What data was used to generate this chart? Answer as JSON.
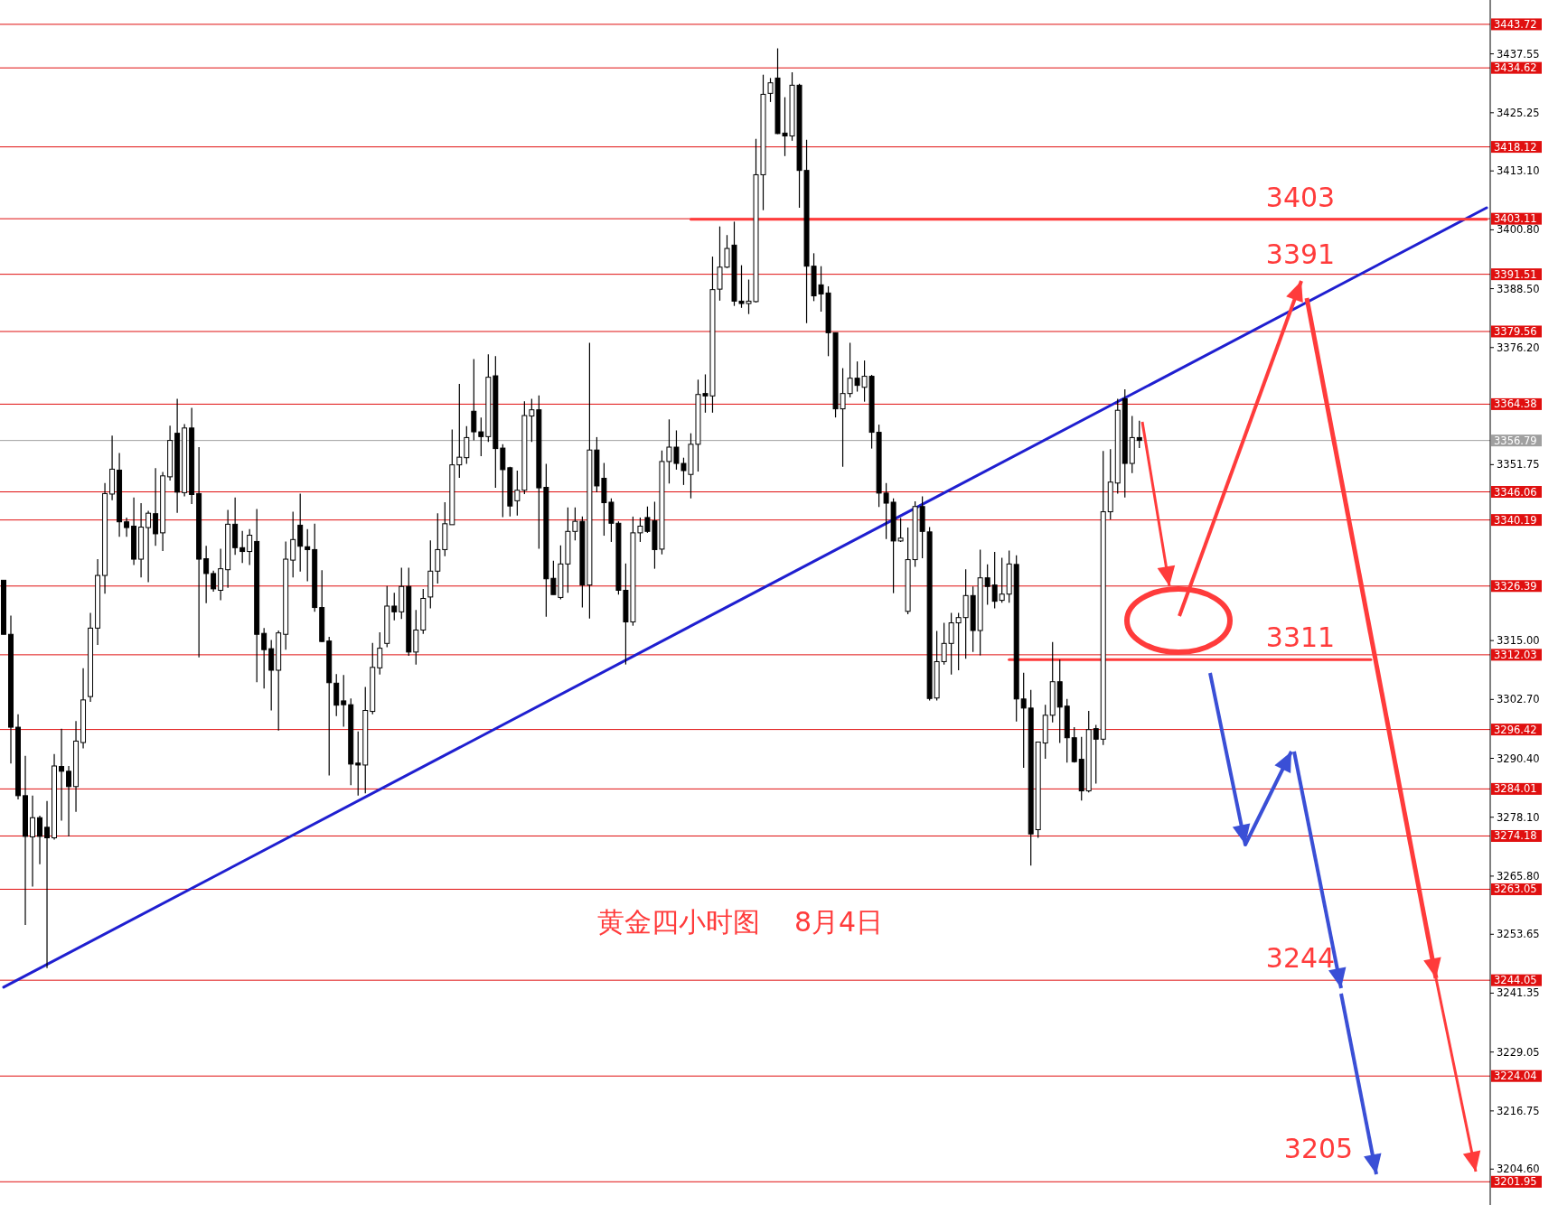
{
  "chart_data": {
    "type": "candlestick",
    "title": "黄金四小时图    8月4日",
    "ylim": [
      3197.1,
      3448.8
    ],
    "tick_labels": "y",
    "yticks": [
      {
        "value": 3437.55,
        "label": "3437.55"
      },
      {
        "value": 3425.25,
        "label": "3425.25"
      },
      {
        "value": 3413.1,
        "label": "3413.10"
      },
      {
        "value": 3400.8,
        "label": "3400.80"
      },
      {
        "value": 3388.5,
        "label": "3388.50"
      },
      {
        "value": 3376.2,
        "label": "3376.20"
      },
      {
        "value": 3351.75,
        "label": "3351.75"
      },
      {
        "value": 3315.0,
        "label": "3315.00"
      },
      {
        "value": 3302.7,
        "label": "3302.70"
      },
      {
        "value": 3290.4,
        "label": "3290.40"
      },
      {
        "value": 3278.1,
        "label": "3278.10"
      },
      {
        "value": 3265.8,
        "label": "3265.80"
      },
      {
        "value": 3253.65,
        "label": "3253.65"
      },
      {
        "value": 3241.35,
        "label": "3241.35"
      },
      {
        "value": 3229.05,
        "label": "3229.05"
      },
      {
        "value": 3216.75,
        "label": "3216.75"
      },
      {
        "value": 3204.6,
        "label": "3204.60"
      }
    ],
    "categories": [
      null,
      null,
      null,
      null,
      null,
      null,
      null,
      null,
      null,
      null,
      null,
      null,
      null,
      null,
      null,
      null,
      null,
      null,
      null,
      null,
      null,
      null,
      null,
      null,
      null,
      null,
      null,
      null,
      null,
      null,
      null,
      null,
      null,
      null,
      null,
      null,
      null,
      null,
      null,
      null,
      null,
      null,
      null,
      null,
      null,
      null,
      null,
      null,
      null,
      null,
      null,
      null,
      null,
      null,
      null,
      null,
      null,
      null,
      null,
      null,
      null,
      null,
      null,
      null,
      null,
      null,
      null,
      null,
      null,
      null,
      null,
      null,
      null,
      null,
      null,
      null,
      null,
      null,
      null,
      null,
      null,
      null,
      null,
      null,
      null,
      null,
      null,
      null,
      null,
      null,
      null,
      null,
      null,
      null,
      null,
      null,
      null,
      null,
      null,
      null,
      null,
      null,
      null,
      null,
      null,
      null,
      null,
      null,
      null,
      null,
      null,
      null,
      null,
      null,
      null,
      null,
      null,
      null,
      null,
      null,
      null,
      null,
      null,
      null,
      null,
      null,
      null,
      null,
      null,
      null,
      null,
      null,
      null,
      null,
      null,
      null,
      null,
      null,
      null,
      null,
      null,
      null,
      null,
      null,
      null,
      null,
      null,
      null,
      null,
      null,
      null,
      null,
      null,
      null,
      null,
      null,
      null,
      null,
      null,
      null,
      null,
      null,
      null,
      null,
      null,
      null,
      null,
      null,
      null,
      null,
      null,
      null,
      null,
      null,
      null,
      null,
      null,
      null,
      null,
      null,
      null,
      null,
      null,
      null,
      null,
      null,
      null,
      null,
      null,
      null,
      null,
      null,
      null,
      null,
      null,
      null,
      null,
      null,
      null,
      null,
      null,
      null,
      null,
      null,
      null,
      null
    ],
    "ohlc": [
      [
        3327.6,
        3327.6,
        3316.3,
        3316.3
      ],
      [
        3316.3,
        3320.2,
        3289.3,
        3296.9
      ],
      [
        3296.9,
        3299.6,
        3281.8,
        3282.6
      ],
      [
        3282.6,
        3290.9,
        3255.6,
        3274.1
      ],
      [
        3274.0,
        3282.6,
        3263.6,
        3278.0
      ],
      [
        3278.0,
        3278.4,
        3268.3,
        3274.1
      ],
      [
        3276.0,
        3281.5,
        3246.6,
        3273.8
      ],
      [
        3273.8,
        3291.3,
        3273.4,
        3288.8
      ],
      [
        3288.7,
        3296.6,
        3277.4,
        3287.7
      ],
      [
        3287.7,
        3288.8,
        3274.1,
        3284.5
      ],
      [
        3284.5,
        3298.2,
        3279.2,
        3294.0
      ],
      [
        3293.7,
        3309.2,
        3292.5,
        3302.6
      ],
      [
        3303.3,
        3320.8,
        3302.2,
        3317.6
      ],
      [
        3317.6,
        3332.0,
        3314.1,
        3328.6
      ],
      [
        3328.6,
        3347.9,
        3324.8,
        3345.7
      ],
      [
        3345.6,
        3357.8,
        3344.3,
        3350.8
      ],
      [
        3350.6,
        3354.2,
        3336.7,
        3339.8
      ],
      [
        3339.8,
        3340.7,
        3336.7,
        3338.6
      ],
      [
        3338.9,
        3344.9,
        3330.8,
        3332.0
      ],
      [
        3332.0,
        3343.7,
        3328.2,
        3338.7
      ],
      [
        3338.6,
        3342.1,
        3327.2,
        3341.6
      ],
      [
        3341.5,
        3351.0,
        3334.8,
        3337.3
      ],
      [
        3337.5,
        3350.2,
        3333.7,
        3349.4
      ],
      [
        3349.2,
        3359.9,
        3348.4,
        3356.8
      ],
      [
        3358.3,
        3365.5,
        3341.7,
        3346.0
      ],
      [
        3345.9,
        3360.2,
        3345.1,
        3359.4
      ],
      [
        3359.4,
        3363.6,
        3343.5,
        3345.5
      ],
      [
        3345.7,
        3355.4,
        3311.5,
        3332.0
      ],
      [
        3332.1,
        3334.8,
        3322.8,
        3329.0
      ],
      [
        3329.0,
        3329.6,
        3325.2,
        3325.8
      ],
      [
        3325.5,
        3334.2,
        3323.4,
        3330.0
      ],
      [
        3329.8,
        3342.3,
        3326.0,
        3339.3
      ],
      [
        3339.3,
        3344.9,
        3332.9,
        3334.4
      ],
      [
        3334.4,
        3337.9,
        3331.2,
        3333.6
      ],
      [
        3333.6,
        3338.3,
        3330.8,
        3337.0
      ],
      [
        3335.7,
        3342.5,
        3306.3,
        3316.3
      ],
      [
        3316.5,
        3317.6,
        3305.0,
        3313.1
      ],
      [
        3313.3,
        3315.1,
        3300.4,
        3308.8
      ],
      [
        3308.8,
        3317.1,
        3296.2,
        3316.6
      ],
      [
        3316.3,
        3335.7,
        3313.1,
        3332.0
      ],
      [
        3331.8,
        3341.9,
        3328.2,
        3336.1
      ],
      [
        3339.1,
        3345.7,
        3329.4,
        3334.7
      ],
      [
        3334.6,
        3338.3,
        3327.4,
        3334.0
      ],
      [
        3334.0,
        3339.4,
        3321.0,
        3321.9
      ],
      [
        3321.9,
        3329.7,
        3314.7,
        3314.8
      ],
      [
        3314.9,
        3315.8,
        3286.8,
        3306.2
      ],
      [
        3306.1,
        3308.0,
        3299.2,
        3301.5
      ],
      [
        3302.4,
        3307.8,
        3297.0,
        3301.6
      ],
      [
        3301.6,
        3302.9,
        3284.8,
        3289.2
      ],
      [
        3289.4,
        3296.0,
        3282.6,
        3289.0
      ],
      [
        3289.0,
        3305.3,
        3283.1,
        3300.4
      ],
      [
        3300.2,
        3314.5,
        3299.6,
        3309.4
      ],
      [
        3309.3,
        3316.7,
        3307.9,
        3313.4
      ],
      [
        3314.4,
        3326.4,
        3313.6,
        3322.2
      ],
      [
        3322.2,
        3325.0,
        3319.2,
        3321.0
      ],
      [
        3321.0,
        3330.2,
        3319.5,
        3326.3
      ],
      [
        3326.3,
        3330.2,
        3311.8,
        3312.6
      ],
      [
        3312.6,
        3321.4,
        3310.0,
        3317.2
      ],
      [
        3317.2,
        3325.8,
        3316.4,
        3323.8
      ],
      [
        3324.1,
        3335.9,
        3321.7,
        3329.5
      ],
      [
        3329.5,
        3341.6,
        3326.9,
        3334.0
      ],
      [
        3334.0,
        3343.9,
        3332.6,
        3339.4
      ],
      [
        3339.2,
        3359.1,
        3339.2,
        3351.7
      ],
      [
        3351.7,
        3368.6,
        3349.0,
        3353.3
      ],
      [
        3353.2,
        3359.8,
        3351.9,
        3357.4
      ],
      [
        3362.9,
        3373.8,
        3356.8,
        3358.6
      ],
      [
        3358.6,
        3361.6,
        3353.5,
        3357.6
      ],
      [
        3357.6,
        3374.8,
        3356.5,
        3370.0
      ],
      [
        3370.3,
        3374.4,
        3346.9,
        3355.1
      ],
      [
        3355.2,
        3356.0,
        3340.8,
        3350.7
      ],
      [
        3351.1,
        3351.3,
        3340.9,
        3343.1
      ],
      [
        3344.2,
        3350.5,
        3341.1,
        3346.4
      ],
      [
        3346.4,
        3365.0,
        3345.6,
        3362.0
      ],
      [
        3361.9,
        3365.5,
        3356.5,
        3363.2
      ],
      [
        3363.2,
        3366.2,
        3334.2,
        3346.9
      ],
      [
        3347.0,
        3351.9,
        3320.0,
        3327.9
      ],
      [
        3328.0,
        3331.7,
        3324.6,
        3324.6
      ],
      [
        3324.0,
        3334.9,
        3323.6,
        3331.0
      ],
      [
        3331.0,
        3342.8,
        3325.0,
        3337.8
      ],
      [
        3337.8,
        3342.8,
        3335.9,
        3339.9
      ],
      [
        3339.9,
        3340.9,
        3321.9,
        3326.6
      ],
      [
        3326.6,
        3377.2,
        3319.6,
        3354.8
      ],
      [
        3354.8,
        3357.5,
        3346.0,
        3347.3
      ],
      [
        3348.9,
        3352.1,
        3336.9,
        3343.8
      ],
      [
        3343.9,
        3344.7,
        3335.6,
        3339.5
      ],
      [
        3339.5,
        3339.9,
        3324.6,
        3325.5
      ],
      [
        3325.5,
        3331.1,
        3310.0,
        3318.9
      ],
      [
        3318.9,
        3340.9,
        3318.1,
        3337.5
      ],
      [
        3337.5,
        3340.7,
        3335.6,
        3338.9
      ],
      [
        3340.7,
        3343.0,
        3337.5,
        3337.8
      ],
      [
        3340.0,
        3344.0,
        3330.0,
        3334.0
      ],
      [
        3334.1,
        3354.7,
        3333.0,
        3352.4
      ],
      [
        3352.4,
        3361.2,
        3347.8,
        3355.4
      ],
      [
        3355.4,
        3358.9,
        3350.7,
        3352.0
      ],
      [
        3352.0,
        3353.2,
        3347.5,
        3350.5
      ],
      [
        3349.7,
        3358.3,
        3344.7,
        3356.0
      ],
      [
        3356.0,
        3369.5,
        3350.3,
        3366.4
      ],
      [
        3366.6,
        3370.6,
        3362.6,
        3366.1
      ],
      [
        3366.1,
        3395.2,
        3362.6,
        3388.3
      ],
      [
        3388.4,
        3401.5,
        3386.0,
        3393.0
      ],
      [
        3393.0,
        3399.7,
        3392.8,
        3396.9
      ],
      [
        3397.6,
        3402.5,
        3384.9,
        3385.9
      ],
      [
        3385.9,
        3393.4,
        3384.5,
        3385.4
      ],
      [
        3385.4,
        3390.4,
        3383.2,
        3385.9
      ],
      [
        3385.8,
        3419.8,
        3385.6,
        3412.3
      ],
      [
        3412.3,
        3433.2,
        3404.9,
        3429.1
      ],
      [
        3429.3,
        3432.5,
        3427.5,
        3431.5
      ],
      [
        3432.5,
        3438.7,
        3420.8,
        3420.9
      ],
      [
        3421.0,
        3428.5,
        3416.2,
        3420.4
      ],
      [
        3420.4,
        3433.7,
        3419.4,
        3431.0
      ],
      [
        3431.0,
        3431.3,
        3405.4,
        3413.2
      ],
      [
        3413.2,
        3419.6,
        3381.3,
        3393.2
      ],
      [
        3393.2,
        3395.9,
        3385.9,
        3387.0
      ],
      [
        3389.3,
        3393.2,
        3383.7,
        3387.4
      ],
      [
        3387.6,
        3389.0,
        3374.4,
        3379.3
      ],
      [
        3379.3,
        3379.3,
        3361.6,
        3363.4
      ],
      [
        3363.4,
        3371.9,
        3351.3,
        3366.6
      ],
      [
        3366.6,
        3377.2,
        3365.8,
        3369.8
      ],
      [
        3369.8,
        3373.3,
        3367.0,
        3368.3
      ],
      [
        3367.9,
        3373.5,
        3364.9,
        3370.2
      ],
      [
        3370.2,
        3370.5,
        3355.1,
        3358.5
      ],
      [
        3358.5,
        3360.1,
        3342.9,
        3345.8
      ],
      [
        3345.8,
        3347.9,
        3336.2,
        3343.7
      ],
      [
        3343.9,
        3344.7,
        3324.9,
        3335.8
      ],
      [
        3335.8,
        3340.6,
        3335.6,
        3336.4
      ],
      [
        3321.1,
        3338.6,
        3320.5,
        3331.9
      ],
      [
        3331.9,
        3344.1,
        3330.4,
        3343.0
      ],
      [
        3343.0,
        3345.1,
        3332.2,
        3337.8
      ],
      [
        3337.7,
        3338.7,
        3302.5,
        3302.9
      ],
      [
        3303.0,
        3317.0,
        3302.5,
        3310.6
      ],
      [
        3310.6,
        3318.7,
        3310.0,
        3314.4
      ],
      [
        3314.4,
        3320.8,
        3307.9,
        3318.7
      ],
      [
        3318.7,
        3320.8,
        3308.8,
        3319.8
      ],
      [
        3319.8,
        3329.9,
        3311.2,
        3324.4
      ],
      [
        3324.4,
        3326.3,
        3312.6,
        3317.1
      ],
      [
        3317.1,
        3334.0,
        3311.9,
        3328.1
      ],
      [
        3328.1,
        3330.9,
        3322.5,
        3326.3
      ],
      [
        3326.6,
        3333.5,
        3321.7,
        3323.2
      ],
      [
        3323.4,
        3332.3,
        3322.9,
        3324.7
      ],
      [
        3324.7,
        3333.8,
        3322.9,
        3331.0
      ],
      [
        3330.9,
        3332.8,
        3298.1,
        3302.8
      ],
      [
        3302.8,
        3308.3,
        3288.4,
        3300.9
      ],
      [
        3300.9,
        3304.7,
        3268.0,
        3274.6
      ],
      [
        3275.5,
        3293.8,
        3273.8,
        3293.8
      ],
      [
        3293.6,
        3301.6,
        3290.3,
        3299.4
      ],
      [
        3299.4,
        3314.7,
        3297.9,
        3306.4
      ],
      [
        3306.4,
        3311.0,
        3293.6,
        3301.1
      ],
      [
        3301.3,
        3302.8,
        3289.5,
        3294.7
      ],
      [
        3294.7,
        3296.9,
        3289.5,
        3289.7
      ],
      [
        3290.2,
        3294.9,
        3281.6,
        3283.6
      ],
      [
        3283.6,
        3300.3,
        3283.3,
        3296.4
      ],
      [
        3296.6,
        3297.4,
        3285.1,
        3294.4
      ],
      [
        3294.4,
        3354.6,
        3293.2,
        3341.9
      ],
      [
        3341.9,
        3355.0,
        3340.3,
        3348.1
      ],
      [
        3347.9,
        3365.5,
        3345.7,
        3363.1
      ],
      [
        3365.5,
        3367.5,
        3344.9,
        3352.0
      ],
      [
        3352.0,
        3361.9,
        3350.0,
        3357.4
      ],
      [
        3357.4,
        3360.9,
        3355.2,
        3356.8
      ],
      null,
      null,
      null,
      null,
      null,
      null,
      null,
      null,
      null,
      null,
      null,
      null,
      null,
      null,
      null,
      null,
      null,
      null,
      null,
      null,
      null,
      null,
      null,
      null,
      null,
      null,
      null,
      null,
      null,
      null,
      null,
      null,
      null,
      null,
      null,
      null,
      null,
      null,
      null,
      null,
      null,
      null,
      null,
      null,
      null,
      null,
      null,
      null
    ],
    "series": [
      {
        "type": "line",
        "color": "#1f1fd0",
        "values": [
          3242.6,
          null,
          null,
          null,
          null,
          null,
          null,
          null,
          null,
          null,
          null,
          null,
          null,
          null,
          null,
          null,
          null,
          null,
          null,
          null,
          null,
          null,
          null,
          null,
          null,
          null,
          null,
          null,
          null,
          null,
          null,
          null,
          null,
          null,
          null,
          null,
          null,
          null,
          null,
          null,
          null,
          null,
          null,
          null,
          null,
          null,
          null,
          null,
          null,
          null,
          null,
          null,
          null,
          null,
          null,
          null,
          null,
          null,
          null,
          null,
          null,
          null,
          null,
          null,
          null,
          null,
          null,
          null,
          null,
          null,
          null,
          null,
          null,
          null,
          null,
          null,
          null,
          null,
          null,
          null,
          null,
          null,
          null,
          null,
          null,
          null,
          null,
          null,
          null,
          null,
          null,
          null,
          null,
          null,
          null,
          null,
          null,
          null,
          null,
          null,
          null,
          null,
          null,
          null,
          null,
          null,
          null,
          null,
          null,
          null,
          null,
          null,
          null,
          null,
          null,
          null,
          null,
          null,
          null,
          null,
          null,
          null,
          null,
          null,
          null,
          null,
          null,
          null,
          null,
          null,
          null,
          null,
          null,
          null,
          null,
          null,
          null,
          null,
          null,
          null,
          null,
          null,
          null,
          null,
          null,
          null,
          null,
          null,
          null,
          null,
          null,
          null,
          null,
          null,
          null,
          null,
          null,
          null,
          null,
          null,
          null,
          null,
          null,
          null,
          null,
          null,
          null,
          null,
          null,
          null,
          null,
          null,
          null,
          null,
          null,
          null,
          null,
          null,
          null,
          null,
          null,
          null,
          null,
          null,
          null,
          null,
          null,
          null,
          null,
          null,
          null,
          null,
          null,
          null,
          null,
          null,
          null,
          null,
          null,
          null,
          null,
          null,
          null,
          null,
          null,
          3405.4
        ]
      },
      {
        "type": "line",
        "color": "#ff3b3b",
        "values": [
          null,
          null,
          null,
          null,
          null,
          null,
          null,
          null,
          null,
          null,
          null,
          null,
          null,
          null,
          null,
          null,
          null,
          null,
          null,
          null,
          null,
          null,
          null,
          null,
          null,
          null,
          null,
          null,
          null,
          null,
          null,
          null,
          null,
          null,
          null,
          null,
          null,
          null,
          null,
          null,
          null,
          null,
          null,
          null,
          null,
          null,
          null,
          null,
          null,
          null,
          null,
          null,
          null,
          null,
          null,
          null,
          null,
          null,
          null,
          null,
          null,
          null,
          null,
          null,
          null,
          null,
          null,
          null,
          null,
          null,
          null,
          null,
          null,
          null,
          null,
          null,
          null,
          null,
          null,
          null,
          null,
          null,
          null,
          null,
          null,
          null,
          null,
          null,
          null,
          null,
          null,
          null,
          null,
          null,
          null,
          3403,
          null,
          null,
          null,
          null,
          null,
          null,
          null,
          null,
          null,
          null,
          null,
          null,
          null,
          null,
          null,
          null,
          null,
          null,
          null,
          null,
          null,
          null,
          null,
          null,
          null,
          null,
          null,
          null,
          null,
          null,
          null,
          null,
          null,
          null,
          null,
          null,
          null,
          null,
          null,
          null,
          null,
          null,
          null,
          null,
          null,
          null,
          null,
          null,
          null,
          null,
          null,
          null,
          null,
          null,
          null,
          null,
          null,
          null,
          null,
          null,
          null,
          null,
          null,
          null,
          null,
          null,
          null,
          null,
          null,
          null,
          null,
          null,
          null,
          null,
          null,
          null,
          null,
          null,
          null,
          null,
          null,
          null,
          null,
          null,
          null,
          null,
          null,
          null,
          null,
          null,
          null,
          null,
          null,
          null,
          null,
          null,
          null,
          null,
          null,
          null,
          null,
          null,
          null,
          null,
          null,
          null,
          null,
          null,
          null,
          3403
        ]
      },
      {
        "type": "line",
        "color": "#ff3b3b",
        "values": [
          null,
          null,
          null,
          null,
          null,
          null,
          null,
          null,
          null,
          null,
          null,
          null,
          null,
          null,
          null,
          null,
          null,
          null,
          null,
          null,
          null,
          null,
          null,
          null,
          null,
          null,
          null,
          null,
          null,
          null,
          null,
          null,
          null,
          null,
          null,
          null,
          null,
          null,
          null,
          null,
          null,
          null,
          null,
          null,
          null,
          null,
          null,
          null,
          null,
          null,
          null,
          null,
          null,
          null,
          null,
          null,
          null,
          null,
          null,
          null,
          null,
          null,
          null,
          null,
          null,
          null,
          null,
          null,
          null,
          null,
          null,
          null,
          null,
          null,
          null,
          null,
          null,
          null,
          null,
          null,
          null,
          null,
          null,
          null,
          null,
          null,
          null,
          null,
          null,
          null,
          null,
          null,
          null,
          null,
          null,
          null,
          null,
          null,
          null,
          null,
          null,
          null,
          null,
          null,
          null,
          null,
          null,
          null,
          null,
          null,
          null,
          null,
          null,
          null,
          null,
          null,
          null,
          null,
          null,
          null,
          null,
          null,
          null,
          null,
          null,
          null,
          null,
          null,
          null,
          null,
          null,
          null,
          null,
          null,
          null,
          null,
          null,
          null,
          null,
          3311,
          null,
          null,
          null,
          null,
          null,
          null,
          null,
          null,
          null,
          null,
          null,
          null,
          null,
          null,
          null,
          null,
          null,
          null,
          null,
          null,
          null,
          null,
          null,
          null,
          null,
          null,
          null,
          null,
          null,
          null,
          null,
          null,
          null,
          null,
          null,
          null,
          null,
          null,
          null,
          null,
          null,
          null,
          null,
          null,
          null,
          null,
          null,
          null,
          null,
          3311,
          null,
          null,
          null,
          null,
          null,
          null,
          null,
          null,
          null,
          null,
          null,
          null,
          null,
          null,
          null,
          null
        ]
      }
    ],
    "ref_lines": [
      {
        "axis": "y",
        "value": 3443.72,
        "label": "3443.72",
        "color": "#e01010"
      },
      {
        "axis": "y",
        "value": 3434.62,
        "label": "3434.62",
        "color": "#e01010"
      },
      {
        "axis": "y",
        "value": 3418.12,
        "label": "3418.12",
        "color": "#e01010"
      },
      {
        "axis": "y",
        "value": 3403.11,
        "label": "3403.11",
        "color": "#e01010"
      },
      {
        "axis": "y",
        "value": 3391.51,
        "label": "3391.51",
        "color": "#e01010"
      },
      {
        "axis": "y",
        "value": 3379.56,
        "label": "3379.56",
        "color": "#e01010"
      },
      {
        "axis": "y",
        "value": 3364.38,
        "label": "3364.38",
        "color": "#e01010"
      },
      {
        "axis": "y",
        "value": 3356.79,
        "label": "3356.79",
        "color": "#a0a0a0"
      },
      {
        "axis": "y",
        "value": 3346.06,
        "label": "3346.06",
        "color": "#e01010"
      },
      {
        "axis": "y",
        "value": 3340.19,
        "label": "3340.19",
        "color": "#e01010"
      },
      {
        "axis": "y",
        "value": 3326.39,
        "label": "3326.39",
        "color": "#e01010"
      },
      {
        "axis": "y",
        "value": 3312.03,
        "label": "3312.03",
        "color": "#e01010"
      },
      {
        "axis": "y",
        "value": 3296.42,
        "label": "3296.42",
        "color": "#e01010"
      },
      {
        "axis": "y",
        "value": 3284.01,
        "label": "3284.01",
        "color": "#e01010"
      },
      {
        "axis": "y",
        "value": 3274.18,
        "label": "3274.18",
        "color": "#e01010"
      },
      {
        "axis": "y",
        "value": 3263.05,
        "label": "3263.05",
        "color": "#e01010"
      },
      {
        "axis": "y",
        "value": 3244.05,
        "label": "3244.05",
        "color": "#e01010"
      },
      {
        "axis": "y",
        "value": 3224.04,
        "label": "3224.04",
        "color": "#e01010"
      },
      {
        "axis": "y",
        "value": 3201.95,
        "label": "3201.95",
        "color": "#e01010"
      }
    ],
    "annotations": [
      {
        "text": "3403",
        "y": 3403
      },
      {
        "text": "3391",
        "y": 3391
      },
      {
        "text": "3311",
        "y": 3311
      },
      {
        "text": "3244",
        "y": 3244
      },
      "3205"
    ]
  }
}
